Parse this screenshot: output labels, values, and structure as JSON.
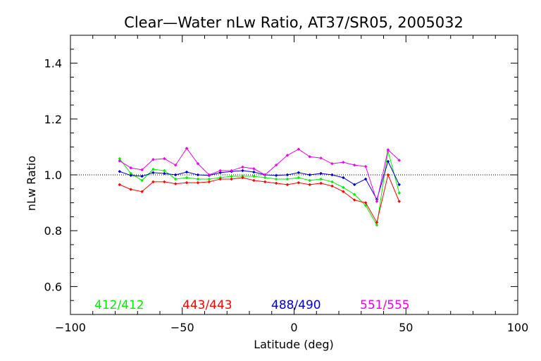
{
  "chart_data": {
    "type": "line",
    "title": "Clear—Water nLw Ratio, AT37/SR05, 2005032",
    "xlabel": "Latitude (deg)",
    "ylabel": "nLw Ratio",
    "xlim": [
      -100,
      100
    ],
    "ylim": [
      0.5,
      1.5
    ],
    "xticks": [
      -100,
      -50,
      0,
      50,
      100
    ],
    "xtick_labels": [
      "−100",
      "−50",
      "0",
      "50",
      "100"
    ],
    "yticks": [
      0.6,
      0.8,
      1.0,
      1.2,
      1.4
    ],
    "ytick_labels": [
      "0.6",
      "0.8",
      "1.0",
      "1.2",
      "1.4"
    ],
    "reference_line": 1.0,
    "grid": false,
    "legend_placement": "bottom",
    "series": [
      {
        "name": "412/412",
        "color": "#00ee00",
        "x": [
          -78,
          -73,
          -68,
          -63,
          -58,
          -53,
          -48,
          -43,
          -38,
          -33,
          -28,
          -23,
          -18,
          -13,
          -8,
          -3,
          2,
          7,
          12,
          17,
          22,
          27,
          32,
          37,
          42,
          47
        ],
        "y": [
          1.058,
          1.005,
          0.98,
          1.02,
          1.015,
          0.985,
          0.99,
          0.985,
          0.985,
          0.99,
          0.995,
          0.995,
          0.995,
          0.99,
          0.985,
          0.985,
          0.99,
          0.98,
          0.985,
          0.975,
          0.955,
          0.93,
          0.89,
          0.82,
          1.085,
          0.935
        ]
      },
      {
        "name": "443/443",
        "color": "#ff0000",
        "x": [
          -78,
          -73,
          -68,
          -63,
          -58,
          -53,
          -48,
          -43,
          -38,
          -33,
          -28,
          -23,
          -18,
          -13,
          -8,
          -3,
          2,
          7,
          12,
          17,
          22,
          27,
          32,
          37,
          42,
          47
        ],
        "y": [
          0.965,
          0.948,
          0.94,
          0.975,
          0.975,
          0.968,
          0.972,
          0.972,
          0.975,
          0.985,
          0.985,
          0.99,
          0.98,
          0.975,
          0.97,
          0.965,
          0.972,
          0.965,
          0.97,
          0.96,
          0.94,
          0.91,
          0.9,
          0.83,
          1.0,
          0.905
        ]
      },
      {
        "name": "488/490",
        "color": "#0000cc",
        "x": [
          -78,
          -73,
          -68,
          -63,
          -58,
          -53,
          -48,
          -43,
          -38,
          -33,
          -28,
          -23,
          -18,
          -13,
          -8,
          -3,
          2,
          7,
          12,
          17,
          22,
          27,
          32,
          37,
          42,
          47
        ],
        "y": [
          1.012,
          0.998,
          0.995,
          1.008,
          1.005,
          1.0,
          1.01,
          1.0,
          0.998,
          1.008,
          1.012,
          1.015,
          1.01,
          1.0,
          0.998,
          1.0,
          1.008,
          1.0,
          1.005,
          1.0,
          0.99,
          0.965,
          0.985,
          0.912,
          1.048,
          0.965
        ]
      },
      {
        "name": "551/555",
        "color": "#ee00ee",
        "x": [
          -78,
          -73,
          -68,
          -63,
          -58,
          -53,
          -48,
          -43,
          -38,
          -33,
          -28,
          -23,
          -18,
          -13,
          -8,
          -3,
          2,
          7,
          12,
          17,
          22,
          27,
          32,
          37,
          42,
          47
        ],
        "y": [
          1.05,
          1.025,
          1.018,
          1.055,
          1.058,
          1.035,
          1.095,
          1.04,
          1.0,
          1.015,
          1.015,
          1.028,
          1.022,
          1.0,
          1.035,
          1.07,
          1.092,
          1.065,
          1.06,
          1.04,
          1.045,
          1.035,
          1.03,
          0.905,
          1.09,
          1.052
        ]
      }
    ]
  }
}
